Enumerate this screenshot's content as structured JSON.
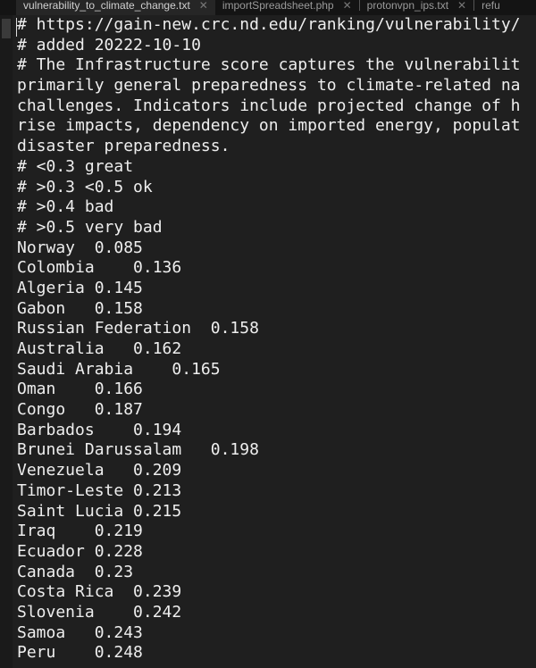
{
  "tabs": [
    {
      "label": "vulnerability_to_climate_change.txt",
      "active": true
    },
    {
      "label": "importSpreadsheet.php",
      "active": false
    },
    {
      "label": "protonvpn_ips.txt",
      "active": false
    },
    {
      "label": "refu",
      "active": false
    }
  ],
  "lines": [
    "# https://gain-new.crc.nd.edu/ranking/vulnerability/",
    "# added 20222-10-10",
    "# The Infrastructure score captures the vulnerabilit",
    "primarily general preparedness to climate-related na",
    "challenges. Indicators include projected change of h",
    "rise impacts, dependency on imported energy, populat",
    "disaster preparedness.",
    "# <0.3 great",
    "# >0.3 <0.5 ok",
    "# >0.4 bad",
    "# >0.5 very bad",
    "Norway  0.085",
    "Colombia    0.136",
    "Algeria 0.145",
    "Gabon   0.158",
    "Russian Federation  0.158",
    "Australia   0.162",
    "Saudi Arabia    0.165",
    "Oman    0.166",
    "Congo   0.187",
    "Barbados    0.194",
    "Brunei Darussalam   0.198",
    "Venezuela   0.209",
    "Timor-Leste 0.213",
    "Saint Lucia 0.215",
    "Iraq    0.219",
    "Ecuador 0.228",
    "Canada  0.23",
    "Costa Rica  0.239",
    "Slovenia    0.242",
    "Samoa   0.243",
    "Peru    0.248"
  ]
}
